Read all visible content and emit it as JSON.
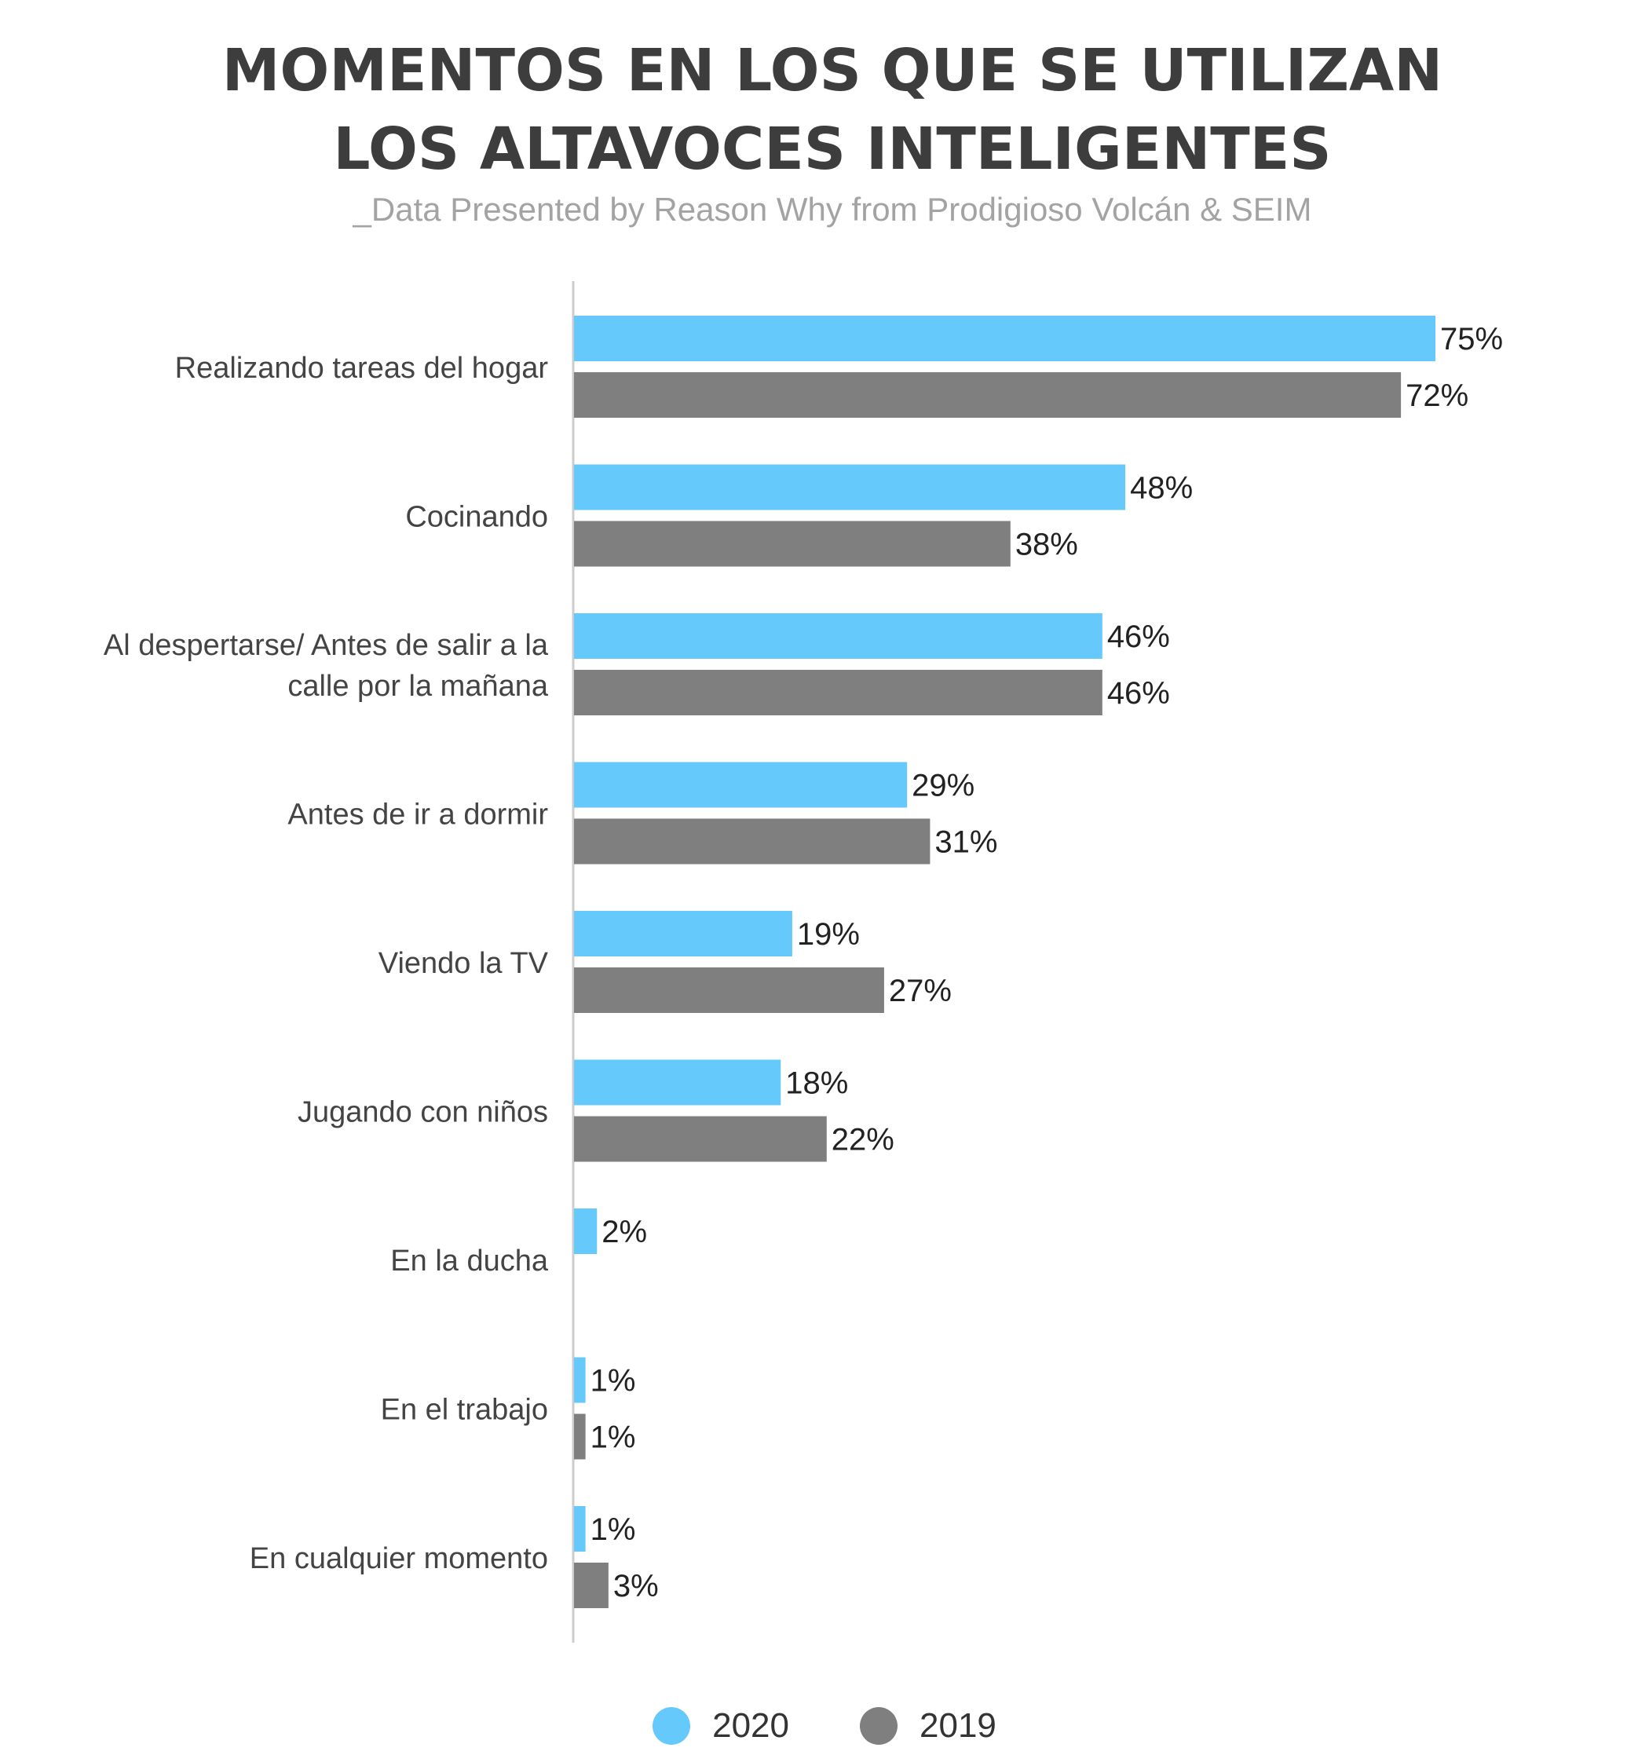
{
  "title": "MOMENTOS EN LOS QUE SE UTILIZAN LOS ALTAVOCES INTELIGENTES",
  "subtitle": "_Data Presented by Reason Why from Prodigioso Volcán & SEIM",
  "colors": {
    "series_2020": "#66c9fb",
    "series_2019": "#7f7f7f",
    "axis": "#cccccc",
    "text": "#333333"
  },
  "chart_data": {
    "type": "bar",
    "orientation": "horizontal",
    "title": "MOMENTOS EN LOS QUE SE UTILIZAN LOS ALTAVOCES INTELIGENTES",
    "subtitle": "_Data Presented by Reason Why from Prodigioso Volcán & SEIM",
    "categories": [
      "Realizando tareas del hogar",
      "Cocinando",
      "Al despertarse/ Antes de salir a la calle por la mañana",
      "Antes de ir a dormir",
      "Viendo la TV",
      "Jugando con niños",
      "En la ducha",
      "En el trabajo",
      "En cualquier momento"
    ],
    "category_lines": [
      [
        "Realizando tareas del hogar"
      ],
      [
        "Cocinando"
      ],
      [
        "Al despertarse/ Antes de salir a la",
        "calle por la mañana"
      ],
      [
        "Antes de ir a dormir"
      ],
      [
        "Viendo la TV"
      ],
      [
        "Jugando con niños"
      ],
      [
        "En la ducha"
      ],
      [
        "En el trabajo"
      ],
      [
        "En cualquier momento"
      ]
    ],
    "series": [
      {
        "name": "2020",
        "color": "#66c9fb",
        "values": [
          75,
          48,
          46,
          29,
          19,
          18,
          2,
          1,
          1
        ],
        "labels": [
          "75%",
          "48%",
          "46%",
          "29%",
          "19%",
          "18%",
          "2%",
          "1%",
          "1%"
        ]
      },
      {
        "name": "2019",
        "color": "#7f7f7f",
        "values": [
          72,
          38,
          46,
          31,
          27,
          22,
          null,
          1,
          3
        ],
        "labels": [
          "72%",
          "38%",
          "46%",
          "31%",
          "27%",
          "22%",
          "",
          "1%",
          "3%"
        ]
      }
    ],
    "unit": "%",
    "xlim": [
      0,
      75
    ],
    "grid": false,
    "legend": "bottom-center"
  }
}
